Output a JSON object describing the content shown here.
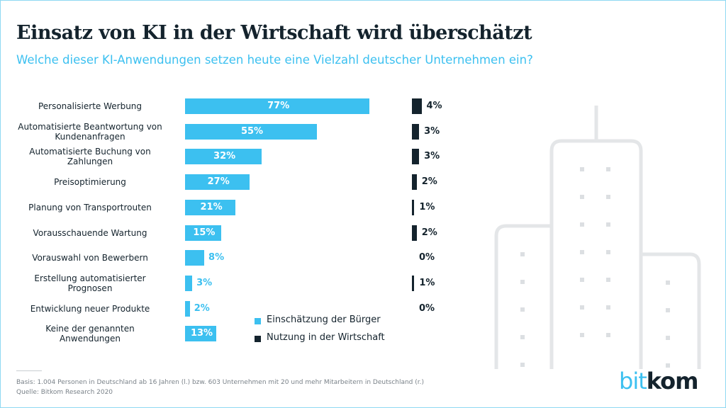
{
  "title": "Einsatz von KI in der Wirtschaft wird überschätzt",
  "subtitle": "Welche dieser KI-Anwendungen setzen heute eine Vielzahl deutscher Unternehmen ein?",
  "colors": {
    "citizens": "#3cc0f0",
    "business": "#14232d"
  },
  "chart_data": {
    "type": "bar",
    "orientation": "horizontal",
    "categories": [
      "Personalisierte Werbung",
      "Automatisierte Beantwortung von Kundenanfragen",
      "Automatisierte Buchung von Zahlungen",
      "Preisoptimierung",
      "Planung von Transportrouten",
      "Vorausschauende Wartung",
      "Vorauswahl von Bewerbern",
      "Erstellung automatisierter Prognosen",
      "Entwicklung neuer Produkte",
      "Keine der genannten Anwendungen"
    ],
    "series": [
      {
        "name": "Einschätzung der Bürger",
        "values": [
          77,
          55,
          32,
          27,
          21,
          15,
          8,
          3,
          2,
          13
        ],
        "labels": [
          "77%",
          "55%",
          "32%",
          "27%",
          "21%",
          "15%",
          "8%",
          "3%",
          "2%",
          "13%"
        ]
      },
      {
        "name": "Nutzung in der Wirtschaft",
        "values": [
          4,
          3,
          3,
          2,
          1,
          2,
          0,
          1,
          0,
          null
        ],
        "labels": [
          "4%",
          "3%",
          "3%",
          "2%",
          "1%",
          "2%",
          "0%",
          "1%",
          "0%",
          ""
        ]
      }
    ],
    "legend": "bottom-center"
  },
  "footer": {
    "basis": "Basis: 1.004 Personen in Deutschland ab 16 Jahren (l.) bzw. 603 Unternehmen mit 20 und mehr Mitarbeitern in Deutschland (r.)",
    "source": "Quelle: Bitkom Research 2020"
  },
  "logo": {
    "part1": "bit",
    "part2": "kom"
  }
}
